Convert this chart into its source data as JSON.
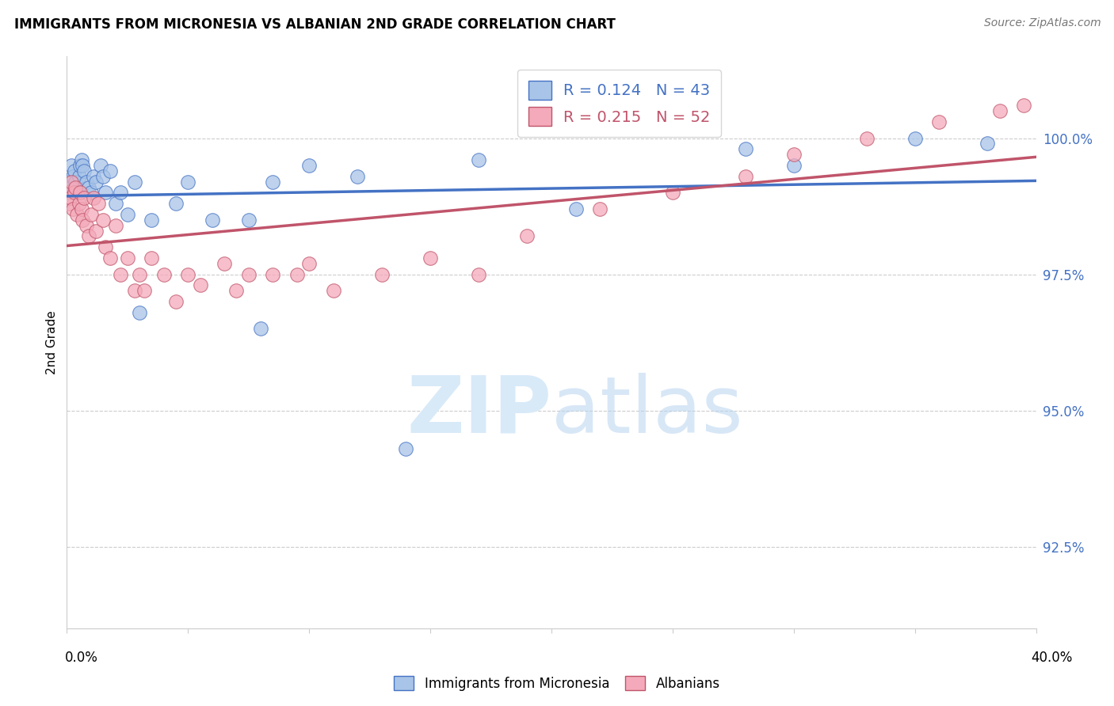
{
  "title": "IMMIGRANTS FROM MICRONESIA VS ALBANIAN 2ND GRADE CORRELATION CHART",
  "source": "Source: ZipAtlas.com",
  "ylabel": "2nd Grade",
  "ytick_labels": [
    "92.5%",
    "95.0%",
    "97.5%",
    "100.0%"
  ],
  "ytick_values": [
    92.5,
    95.0,
    97.5,
    100.0
  ],
  "xlim": [
    0.0,
    40.0
  ],
  "ylim": [
    91.0,
    101.5
  ],
  "legend_label1": "Immigrants from Micronesia",
  "legend_label2": "Albanians",
  "R1": 0.124,
  "N1": 43,
  "R2": 0.215,
  "N2": 52,
  "color1": "#a8c4e8",
  "color2": "#f4aaba",
  "line_color1": "#4472c4",
  "line_color2": "#c0546a",
  "micronesia_x": [
    0.05,
    0.1,
    0.15,
    0.2,
    0.25,
    0.3,
    0.35,
    0.4,
    0.5,
    0.55,
    0.6,
    0.65,
    0.7,
    0.8,
    0.9,
    1.0,
    1.1,
    1.2,
    1.4,
    1.5,
    1.6,
    1.8,
    2.0,
    2.2,
    2.5,
    2.8,
    3.0,
    3.5,
    4.5,
    5.0,
    6.0,
    7.5,
    8.0,
    8.5,
    10.0,
    12.0,
    14.0,
    17.0,
    21.0,
    28.0,
    30.0,
    35.0,
    38.0
  ],
  "micronesia_y": [
    99.2,
    99.0,
    99.1,
    99.5,
    99.3,
    99.4,
    99.2,
    99.0,
    99.3,
    99.5,
    99.6,
    99.5,
    99.4,
    99.2,
    99.1,
    99.0,
    99.3,
    99.2,
    99.5,
    99.3,
    99.0,
    99.4,
    98.8,
    99.0,
    98.6,
    99.2,
    96.8,
    98.5,
    98.8,
    99.2,
    98.5,
    98.5,
    96.5,
    99.2,
    99.5,
    99.3,
    94.3,
    99.6,
    98.7,
    99.8,
    99.5,
    100.0,
    99.9
  ],
  "albanian_x": [
    0.05,
    0.1,
    0.15,
    0.2,
    0.25,
    0.3,
    0.35,
    0.4,
    0.5,
    0.55,
    0.6,
    0.65,
    0.7,
    0.8,
    0.9,
    1.0,
    1.1,
    1.2,
    1.3,
    1.5,
    1.6,
    1.8,
    2.0,
    2.2,
    2.5,
    2.8,
    3.0,
    3.2,
    3.5,
    4.0,
    4.5,
    5.0,
    5.5,
    6.5,
    7.0,
    7.5,
    8.5,
    9.5,
    10.0,
    11.0,
    13.0,
    15.0,
    17.0,
    19.0,
    22.0,
    25.0,
    28.0,
    30.0,
    33.0,
    36.0,
    38.5,
    39.5
  ],
  "albanian_y": [
    99.0,
    98.8,
    98.9,
    99.2,
    98.7,
    99.0,
    99.1,
    98.6,
    98.8,
    99.0,
    98.7,
    98.5,
    98.9,
    98.4,
    98.2,
    98.6,
    98.9,
    98.3,
    98.8,
    98.5,
    98.0,
    97.8,
    98.4,
    97.5,
    97.8,
    97.2,
    97.5,
    97.2,
    97.8,
    97.5,
    97.0,
    97.5,
    97.3,
    97.7,
    97.2,
    97.5,
    97.5,
    97.5,
    97.7,
    97.2,
    97.5,
    97.8,
    97.5,
    98.2,
    98.7,
    99.0,
    99.3,
    99.7,
    100.0,
    100.3,
    100.5,
    100.6
  ]
}
